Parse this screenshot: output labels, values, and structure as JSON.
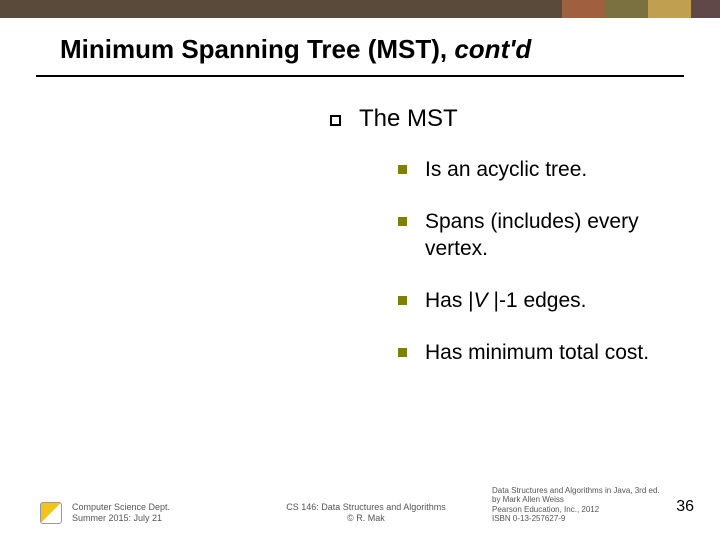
{
  "top_bar": {
    "strips": [
      {
        "color": "#5a4a3a",
        "width_pct": 78
      },
      {
        "color": "#a06040",
        "width_pct": 6
      },
      {
        "color": "#7a7040",
        "width_pct": 6
      },
      {
        "color": "#c0a050",
        "width_pct": 6
      },
      {
        "color": "#604848",
        "width_pct": 4
      }
    ]
  },
  "title_plain": "Minimum Spanning Tree (MST), ",
  "title_italic": "cont'd",
  "main_bullet": "The MST",
  "sub_bullets": [
    {
      "prefix": "Is an ",
      "em": "acyclic",
      "suffix": " tree."
    },
    {
      "prefix": "",
      "em": "Spans",
      "suffix": " (includes) every vertex."
    },
    {
      "html": "Has |<span class=\"ital\">V </span>|-1 edges."
    },
    {
      "prefix": "Has ",
      "em": "minimum total cost",
      "suffix": "."
    }
  ],
  "footer": {
    "left_line1": "Computer Science Dept.",
    "left_line2": "Summer 2015: July 21",
    "center_line1": "CS 146: Data Structures and Algorithms",
    "center_line2": "© R. Mak",
    "right_line1": "Data Structures and Algorithms in Java, 3rd ed.",
    "right_line2": "by Mark Allen Weiss",
    "right_line3": "Pearson Education, Inc., 2012",
    "right_line4": "ISBN 0-13-257627-9"
  },
  "page_number": "36"
}
